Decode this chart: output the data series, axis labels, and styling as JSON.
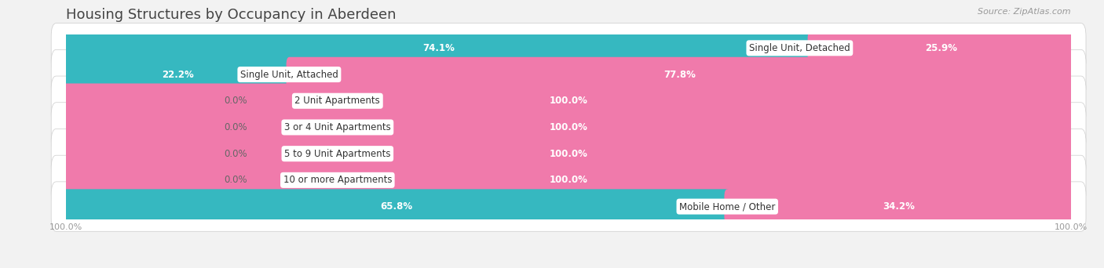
{
  "title": "Housing Structures by Occupancy in Aberdeen",
  "source": "Source: ZipAtlas.com",
  "categories": [
    "Single Unit, Detached",
    "Single Unit, Attached",
    "2 Unit Apartments",
    "3 or 4 Unit Apartments",
    "5 to 9 Unit Apartments",
    "10 or more Apartments",
    "Mobile Home / Other"
  ],
  "owner_pct": [
    74.1,
    22.2,
    0.0,
    0.0,
    0.0,
    0.0,
    65.8
  ],
  "renter_pct": [
    25.9,
    77.8,
    100.0,
    100.0,
    100.0,
    100.0,
    34.2
  ],
  "owner_color": "#36b8c0",
  "renter_color": "#f07aab",
  "renter_light": "#f9cce0",
  "row_bg": "#ffffff",
  "fig_bg": "#f2f2f2",
  "title_fontsize": 13,
  "label_fontsize": 8.5,
  "pct_fontsize": 8.5,
  "legend_fontsize": 9,
  "axis_fontsize": 8,
  "source_fontsize": 8
}
